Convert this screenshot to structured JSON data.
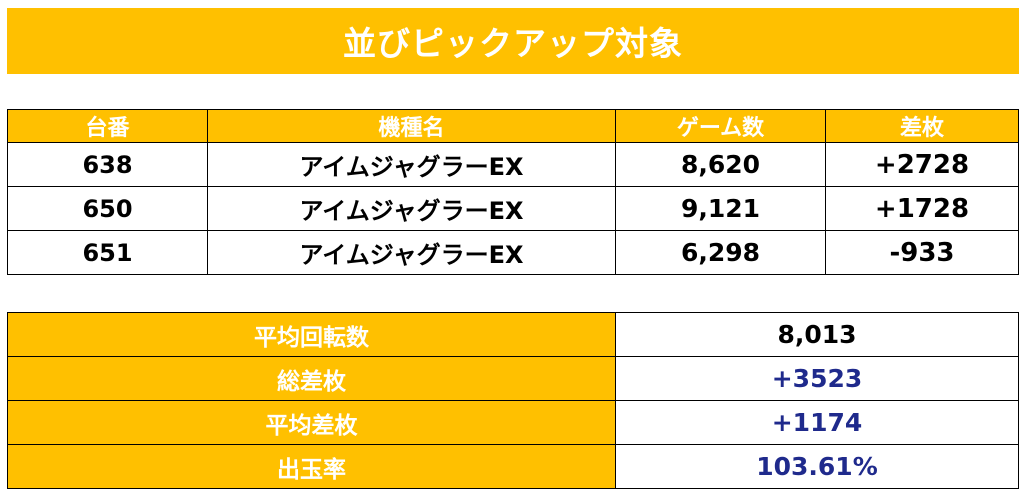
{
  "title": "並びピックアップ対象",
  "table": {
    "headers": [
      "台番",
      "機種名",
      "ゲーム数",
      "差枚"
    ],
    "rows": [
      {
        "number": "638",
        "machine": "アイムジャグラーEX",
        "games": "8,620",
        "diff": "+2728",
        "diff_sign": "pos"
      },
      {
        "number": "650",
        "machine": "アイムジャグラーEX",
        "games": "9,121",
        "diff": "+1728",
        "diff_sign": "pos"
      },
      {
        "number": "651",
        "machine": "アイムジャグラーEX",
        "games": "6,298",
        "diff": "-933",
        "diff_sign": "neg"
      }
    ]
  },
  "summary": {
    "rows": [
      {
        "label": "平均回転数",
        "value": "8,013",
        "tone": "plain"
      },
      {
        "label": "総差枚",
        "value": "+3523",
        "tone": "pos"
      },
      {
        "label": "平均差枚",
        "value": "+1174",
        "tone": "pos"
      },
      {
        "label": "出玉率",
        "value": "103.61%",
        "tone": "pos"
      }
    ]
  },
  "colors": {
    "header_bg": "#FFC000",
    "header_text": "#FFFFFF",
    "positive": "#1F2A8C",
    "negative": "#FF0000"
  }
}
